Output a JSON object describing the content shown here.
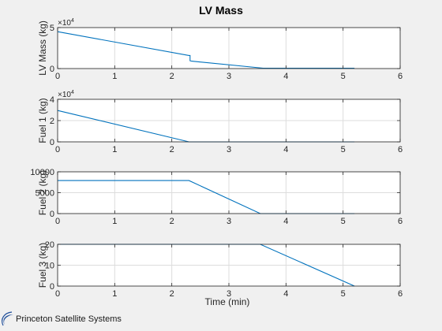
{
  "figure_title": "LV Mass",
  "footer": {
    "company": "Princeton Satellite Systems"
  },
  "colors": {
    "line": "#0072bd",
    "grid": "#dcdcdc",
    "axes_bg": "#ffffff",
    "figure_bg": "#f0f0f0",
    "logo": "#1f4e9a"
  },
  "chart_data": [
    {
      "type": "line",
      "title": "LV Mass",
      "xlabel": "",
      "ylabel": "LV Mass (kg)",
      "exponent": "4",
      "xlim": [
        0,
        6
      ],
      "ylim": [
        0,
        5
      ],
      "xticks": [
        "0",
        "1",
        "2",
        "3",
        "4",
        "5",
        "6"
      ],
      "yticks": [
        {
          "value": 0,
          "label": "0"
        },
        {
          "value": 5,
          "label": "5"
        }
      ],
      "grid": true,
      "x": [
        0,
        2.3,
        2.32,
        2.32,
        2.35,
        3.6,
        5.2
      ],
      "y": [
        4.5,
        1.6,
        1.6,
        0.95,
        0.9,
        0.05,
        0.05
      ]
    },
    {
      "type": "line",
      "xlabel": "",
      "ylabel": "Fuel 1 (kg)",
      "exponent": "4",
      "xlim": [
        0,
        6
      ],
      "ylim": [
        0,
        4
      ],
      "xticks": [
        "0",
        "1",
        "2",
        "3",
        "4",
        "5",
        "6"
      ],
      "yticks": [
        {
          "value": 0,
          "label": "0"
        },
        {
          "value": 2,
          "label": "2"
        },
        {
          "value": 4,
          "label": "4"
        }
      ],
      "grid": true,
      "x": [
        0,
        2.3,
        5.2
      ],
      "y": [
        2.95,
        0,
        0
      ]
    },
    {
      "type": "line",
      "xlabel": "",
      "ylabel": "Fuel 2 (kg)",
      "xlim": [
        0,
        6
      ],
      "ylim": [
        0,
        10000
      ],
      "xticks": [
        "0",
        "1",
        "2",
        "3",
        "4",
        "5",
        "6"
      ],
      "yticks": [
        {
          "value": 0,
          "label": "0"
        },
        {
          "value": 5000,
          "label": "5000"
        },
        {
          "value": 10000,
          "label": "10000"
        }
      ],
      "grid": true,
      "x": [
        0,
        2.3,
        3.55,
        5.2
      ],
      "y": [
        7900,
        7900,
        0,
        0
      ]
    },
    {
      "type": "line",
      "xlabel": "Time (min)",
      "ylabel": "Fuel 3 (kg)",
      "xlim": [
        0,
        6
      ],
      "ylim": [
        0,
        20
      ],
      "xticks": [
        "0",
        "1",
        "2",
        "3",
        "4",
        "5",
        "6"
      ],
      "yticks": [
        {
          "value": 0,
          "label": "0"
        },
        {
          "value": 10,
          "label": "10"
        },
        {
          "value": 20,
          "label": "20"
        }
      ],
      "grid": true,
      "x": [
        0,
        3.55,
        5.2
      ],
      "y": [
        20,
        20,
        0
      ]
    }
  ]
}
